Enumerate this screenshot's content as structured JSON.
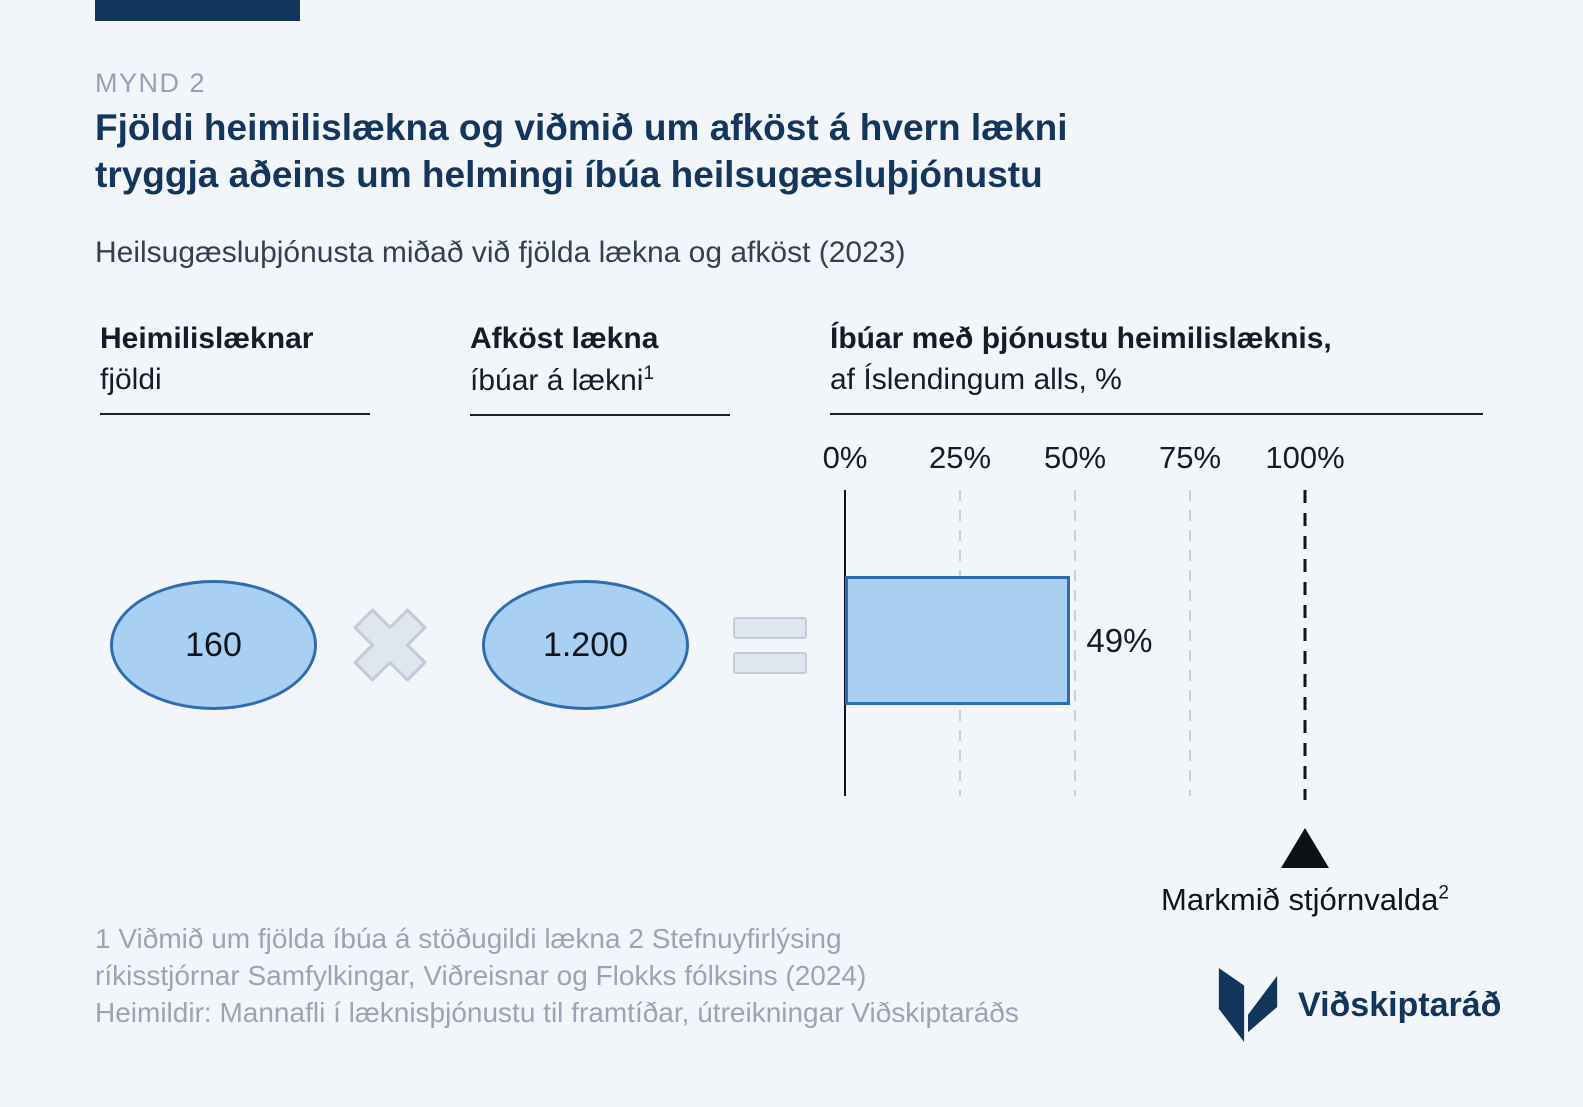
{
  "meta": {
    "kicker": "MYND 2",
    "title": "Fjöldi heimilislækna og viðmið um afköst á hvern lækni\ntryggja aðeins um helmingi íbúa heilsugæsluþjónustu",
    "subtitle": "Heilsugæsluþjónusta miðað við fjölda lækna og afköst (2023)"
  },
  "columns": [
    {
      "title": "Heimilislæknar",
      "subtitle": "fjöldi",
      "sup": ""
    },
    {
      "title": "Afköst lækna",
      "subtitle": "íbúar á lækni",
      "sup": "1"
    },
    {
      "title": "Íbúar með þjónustu heimilislæknis,",
      "subtitle": "af Íslendingum alls, %",
      "sup": ""
    }
  ],
  "chart_data": {
    "type": "bar",
    "orientation": "horizontal",
    "title": "Heilsugæsluþjónusta miðað við fjölda lækna og afköst (2023)",
    "categories": [
      "Íbúar með þjónustu heimilislæknis, af Íslendingum alls"
    ],
    "values": [
      49
    ],
    "value_labels": [
      "49%"
    ],
    "xlim": [
      0,
      100
    ],
    "tick_labels": [
      "0%",
      "25%",
      "50%",
      "75%",
      "100%"
    ],
    "tick_values": [
      0,
      25,
      50,
      75,
      100
    ],
    "grid": "dashed-vertical-at-25-50-75",
    "equation": {
      "doctors_count": "160",
      "multiply_symbol": "×",
      "inhabitants_per_doctor": "1.200",
      "equals_symbol": "="
    },
    "target": {
      "value": 100,
      "label": "Markmið stjórnvalda",
      "sup": "2",
      "marker": "triangle-up"
    }
  },
  "footnotes": {
    "text": "1 Viðmið um fjölda íbúa á stöðugildi lækna 2 Stefnuyfirlýsing\nríkisstjórnar Samfylkingar, Viðreisnar og Flokks fólksins (2024)\nHeimildir: Mannafli í læknisþjónustu til framtíðar, útreikningar Viðskiptaráðs"
  },
  "logo": {
    "wordmark": "Viðskiptaráð"
  },
  "colors": {
    "background": "#f2f5f9",
    "navy": "#12355c",
    "bar_fill": "#a9cff3",
    "bar_border": "#2e6cb5",
    "muted_gray": "#9aa4b6",
    "operator_fill": "#e0e6ef",
    "operator_border": "#c2cbd8"
  }
}
